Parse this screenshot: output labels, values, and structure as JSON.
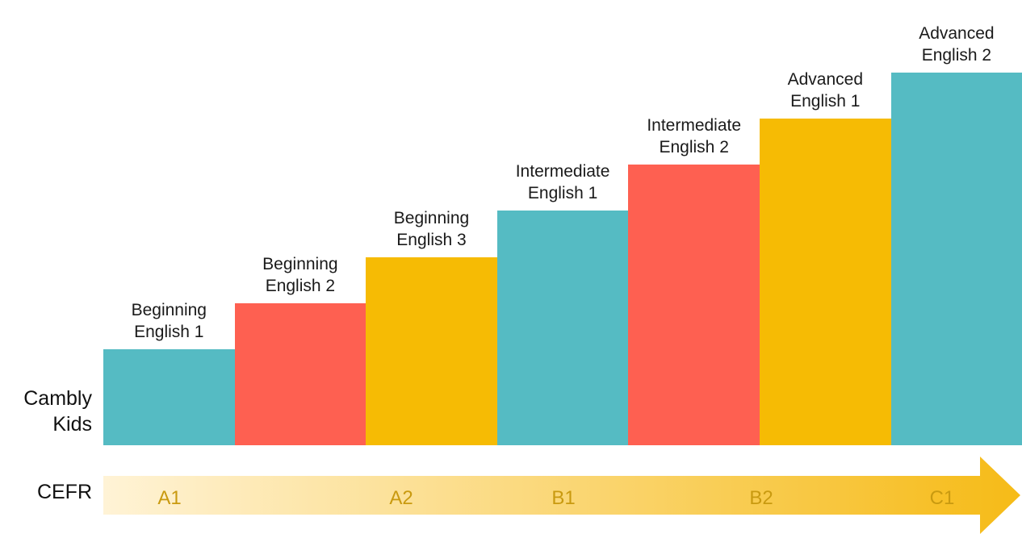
{
  "row_labels": {
    "program": "Cambly\nKids",
    "framework": "CEFR"
  },
  "colors": {
    "teal": "#55bbc3",
    "coral": "#fe6051",
    "gold": "#f6bb04",
    "arrow_start": "#fff3d6",
    "arrow_end": "#f6bb17",
    "level_text": "#c99a10"
  },
  "levels": [
    {
      "name": "Beginning\nEnglish 1",
      "step": 1,
      "color": "teal"
    },
    {
      "name": "Beginning\nEnglish 2",
      "step": 2,
      "color": "coral"
    },
    {
      "name": "Beginning\nEnglish 3",
      "step": 3,
      "color": "gold"
    },
    {
      "name": "Intermediate\nEnglish 1",
      "step": 4,
      "color": "teal"
    },
    {
      "name": "Intermediate\nEnglish 2",
      "step": 5,
      "color": "coral"
    },
    {
      "name": "Advanced\nEnglish 1",
      "step": 6,
      "color": "gold"
    },
    {
      "name": "Advanced\nEnglish 2",
      "step": 7,
      "color": "teal"
    }
  ],
  "cefr_levels": [
    "A1",
    "A2",
    "B1",
    "B2",
    "C1"
  ]
}
